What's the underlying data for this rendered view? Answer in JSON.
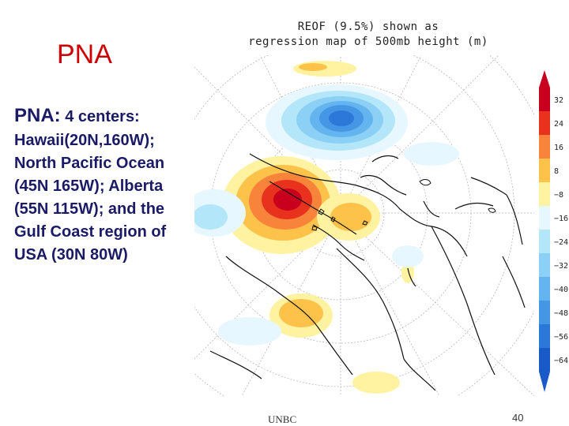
{
  "slide": {
    "title": "PNA",
    "lead_bold": "PNA:",
    "lead_rest": " 4 centers:",
    "detail": "Hawaii(20N,160W); North Pacific Ocean (45N 165W); Alberta (55N 115W); and the Gulf Coast region of USA (30N 80W)"
  },
  "map": {
    "caption_line1": "REOF (9.5%) shown as",
    "caption_line2": "regression map of 500mb height (m)",
    "colorbar_labels": [
      "32",
      "24",
      "16",
      "8",
      "−8",
      "−16",
      "−24",
      "−32",
      "−40",
      "−48",
      "−56",
      "−64"
    ],
    "colorbar_colors": [
      "#c8001e",
      "#e8321e",
      "#f7843a",
      "#fcc24a",
      "#fff2a0",
      "#e6f7ff",
      "#b4e6fa",
      "#8cd0f5",
      "#64b4f0",
      "#4696e6",
      "#2c78d8",
      "#1a5ac8"
    ]
  },
  "footer": {
    "source": "UNBC",
    "page_number": "40"
  }
}
